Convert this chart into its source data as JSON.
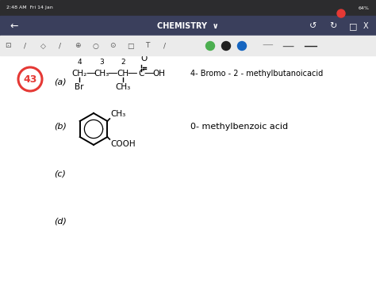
{
  "bg_color": "#ffffff",
  "toolbar_bg": "#3a3f5c",
  "status_bar_bg": "#2c2c2e",
  "status_bar_text": "2:48 AM  Fri 14 Jan",
  "title_text": "CHEMISTRY",
  "problem_number": "43",
  "circle_color": "#e53935",
  "part_a_label": "(a)",
  "part_b_label": "(b)",
  "part_c_label": "(c)",
  "part_d_label": "(d)",
  "answer_a": "4- Bromo - 2 - methylbutanoicacid",
  "answer_b": "0- methylbenzoic acid",
  "dot_colors": [
    "#4caf50",
    "#212121",
    "#1565c0"
  ],
  "dash_colors": [
    "#9e9e9e",
    "#616161",
    "#212121"
  ]
}
